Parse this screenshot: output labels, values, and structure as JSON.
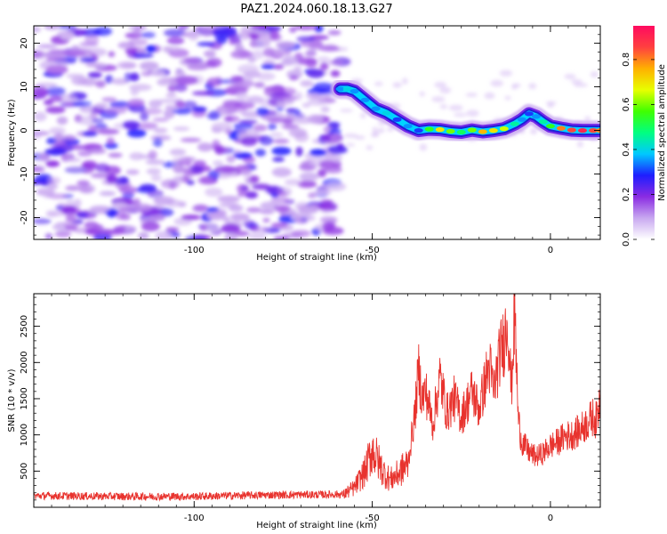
{
  "figure": {
    "title": "PAZ1.2024.060.18.13.G27"
  },
  "chart_data": [
    {
      "id": "spectrogram",
      "type": "heatmap",
      "xlabel": "Height of straight line (km)",
      "ylabel": "Frequency (Hz)",
      "xlim": [
        -145,
        14
      ],
      "ylim": [
        -25,
        24
      ],
      "xticks": [
        -100,
        -50,
        0
      ],
      "yticks": [
        -20,
        -10,
        0,
        10,
        20
      ],
      "noise_region": {
        "x": [
          -145,
          -60
        ],
        "y": [
          -25,
          24
        ],
        "amplitude": [
          0.0,
          0.25
        ]
      },
      "ridge": {
        "x": [
          -59,
          -57,
          -55,
          -52,
          -49,
          -46,
          -43,
          -40,
          -37,
          -34,
          -31,
          -28,
          -25,
          -22,
          -19,
          -16,
          -13,
          -10,
          -8,
          -6,
          -4,
          -2,
          0,
          3,
          6,
          9,
          12,
          14
        ],
        "freq": [
          9.5,
          9.5,
          9,
          7,
          5,
          4,
          2.5,
          1,
          0,
          0.3,
          0.2,
          -0.2,
          -0.4,
          0.1,
          -0.3,
          0.0,
          0.4,
          1.5,
          2.5,
          3.8,
          3.2,
          2.0,
          1.0,
          0.5,
          0.1,
          0.0,
          0.0,
          0.0
        ],
        "amplitude": [
          0.35,
          0.4,
          0.35,
          0.35,
          0.35,
          0.4,
          0.3,
          0.35,
          0.3,
          0.55,
          0.7,
          0.6,
          0.5,
          0.6,
          0.75,
          0.7,
          0.65,
          0.45,
          0.35,
          0.3,
          0.35,
          0.45,
          0.55,
          0.8,
          0.85,
          0.9,
          0.85,
          0.8
        ]
      }
    },
    {
      "id": "snr",
      "type": "line",
      "xlabel": "Height of straight line (km)",
      "ylabel": "SNR (10 * v/v)",
      "xlim": [
        -145,
        14
      ],
      "ylim": [
        0,
        2950
      ],
      "xticks": [
        -100,
        -50,
        0
      ],
      "yticks": [
        500,
        1000,
        1500,
        2000,
        2500
      ],
      "series": [
        {
          "color": "#e8332e",
          "x": [
            -145,
            -120,
            -100,
            -80,
            -65,
            -58,
            -55,
            -52,
            -50,
            -47,
            -45,
            -43,
            -40,
            -38,
            -37,
            -36,
            -35,
            -33,
            -31,
            -29,
            -27,
            -25,
            -22,
            -20,
            -18,
            -17,
            -16,
            -14,
            -13,
            -12,
            -11,
            -10,
            -9,
            -8,
            -6,
            -4,
            -2,
            0,
            2,
            4,
            6,
            8,
            10,
            12,
            13,
            14
          ],
          "values": [
            160,
            150,
            150,
            170,
            175,
            180,
            270,
            500,
            800,
            500,
            380,
            450,
            600,
            1300,
            1900,
            1500,
            1600,
            1150,
            1800,
            1300,
            1500,
            1250,
            1600,
            1350,
            1800,
            1950,
            1600,
            2150,
            2300,
            2650,
            1600,
            2700,
            1200,
            900,
            760,
            700,
            750,
            850,
            900,
            980,
            1000,
            1050,
            1150,
            1250,
            1200,
            1550
          ]
        }
      ]
    }
  ],
  "colorbar": {
    "label": "Normalized spectral amplitude",
    "min": 0.0,
    "max": 0.95,
    "ticks": [
      0.0,
      0.2,
      0.4,
      0.6,
      0.8
    ],
    "stops": [
      "#ffffff",
      "#c8a8f0",
      "#8a2be2",
      "#1e1eff",
      "#00c8ff",
      "#00ff80",
      "#40ff00",
      "#e8ff00",
      "#ffb000",
      "#ff4040",
      "#ff0a60"
    ]
  }
}
